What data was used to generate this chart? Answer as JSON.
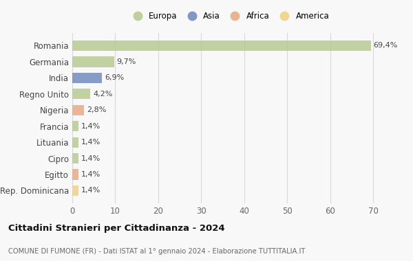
{
  "countries": [
    "Romania",
    "Germania",
    "India",
    "Regno Unito",
    "Nigeria",
    "Francia",
    "Lituania",
    "Cipro",
    "Egitto",
    "Rep. Dominicana"
  ],
  "values": [
    69.4,
    9.7,
    6.9,
    4.2,
    2.8,
    1.4,
    1.4,
    1.4,
    1.4,
    1.4
  ],
  "labels": [
    "69,4%",
    "9,7%",
    "6,9%",
    "4,2%",
    "2,8%",
    "1,4%",
    "1,4%",
    "1,4%",
    "1,4%",
    "1,4%"
  ],
  "continents": [
    "Europa",
    "Europa",
    "Asia",
    "Europa",
    "Africa",
    "Europa",
    "Europa",
    "Europa",
    "Africa",
    "America"
  ],
  "colors": {
    "Europa": "#b5c98e",
    "Asia": "#6d87bb",
    "Africa": "#e8a882",
    "America": "#f0d080"
  },
  "legend_order": [
    "Europa",
    "Asia",
    "Africa",
    "America"
  ],
  "legend_colors": [
    "#b5c98e",
    "#6d87bb",
    "#e8a882",
    "#f0d080"
  ],
  "xlim": [
    0,
    73
  ],
  "xticks": [
    0,
    10,
    20,
    30,
    40,
    50,
    60,
    70
  ],
  "title": "Cittadini Stranieri per Cittadinanza - 2024",
  "subtitle": "COMUNE DI FUMONE (FR) - Dati ISTAT al 1° gennaio 2024 - Elaborazione TUTTITALIA.IT",
  "bg_color": "#f8f8f8",
  "grid_color": "#d8d8d8",
  "bar_height": 0.65
}
